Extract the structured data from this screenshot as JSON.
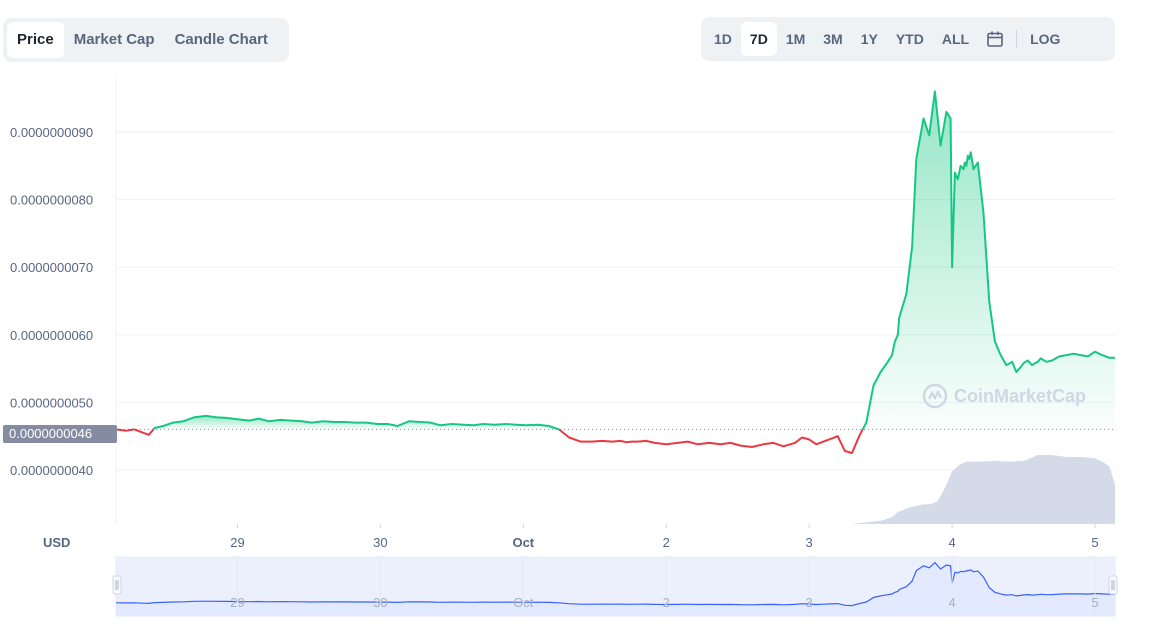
{
  "tabs": [
    {
      "label": "Price",
      "active": true
    },
    {
      "label": "Market Cap",
      "active": false
    },
    {
      "label": "Candle Chart",
      "active": false
    }
  ],
  "ranges": [
    {
      "label": "1D",
      "active": false
    },
    {
      "label": "7D",
      "active": true
    },
    {
      "label": "1M",
      "active": false
    },
    {
      "label": "3M",
      "active": false
    },
    {
      "label": "1Y",
      "active": false
    },
    {
      "label": "YTD",
      "active": false
    },
    {
      "label": "ALL",
      "active": false
    }
  ],
  "calendar_icon": "calendar-icon",
  "log_label": "LOG",
  "watermark": "CoinMarketCap",
  "current_price_label": "0.0000000046",
  "colors": {
    "up": "#16c784",
    "down": "#ea3943",
    "volume": "#cfd6e4",
    "navigator_line": "#3861fb",
    "navigator_fill": "#e3eaff"
  },
  "chart_data": {
    "type": "line",
    "currency_label": "USD",
    "x_ticks": [
      {
        "label": "29",
        "x": 1.0
      },
      {
        "label": "30",
        "x": 2.0
      },
      {
        "label": "Oct",
        "x": 3.0
      },
      {
        "label": "2",
        "x": 4.0
      },
      {
        "label": "3",
        "x": 5.0
      },
      {
        "label": "4",
        "x": 6.0
      },
      {
        "label": "5",
        "x": 7.0
      }
    ],
    "y_ticks": [
      "0.0000000040",
      "0.0000000050",
      "0.0000000060",
      "0.0000000070",
      "0.0000000080",
      "0.0000000090"
    ],
    "y_tick_values": [
      4.0,
      5.0,
      6.0,
      7.0,
      8.0,
      9.0
    ],
    "ylim": [
      3.2,
      9.8
    ],
    "y_unit": "e-9 USD",
    "xlim": [
      0.15,
      7.14
    ],
    "baseline": 4.6,
    "series": [
      {
        "x": [
          0.15,
          0.22,
          0.28,
          0.34,
          0.38,
          0.42,
          0.48,
          0.55,
          0.62,
          0.7,
          0.78,
          0.85,
          0.92,
          1.0,
          1.08,
          1.15,
          1.22,
          1.3,
          1.38,
          1.45,
          1.52,
          1.6,
          1.68,
          1.75,
          1.82,
          1.9,
          1.98,
          2.05,
          2.12,
          2.2,
          2.28,
          2.35,
          2.42,
          2.5,
          2.58,
          2.65,
          2.72,
          2.8,
          2.88,
          2.95,
          3.02,
          3.1,
          3.18,
          3.25,
          3.32,
          3.4,
          3.48,
          3.55,
          3.62,
          3.68,
          3.72,
          3.76,
          3.8,
          3.86,
          3.92,
          4.0,
          4.08,
          4.15,
          4.22,
          4.3,
          4.38,
          4.45,
          4.52,
          4.6,
          4.68,
          4.75,
          4.82,
          4.9,
          4.95,
          5.0,
          5.05,
          5.1,
          5.15,
          5.2,
          5.25,
          5.3,
          5.35,
          5.4,
          5.45,
          5.5,
          5.55,
          5.58,
          5.6,
          5.62,
          5.63,
          5.65,
          5.68,
          5.72,
          5.75,
          5.8,
          5.84,
          5.88,
          5.92,
          5.96,
          5.99,
          6.0,
          6.02,
          6.04,
          6.06,
          6.08,
          6.09,
          6.1,
          6.11,
          6.12,
          6.13,
          6.15,
          6.18,
          6.22,
          6.26,
          6.3,
          6.34,
          6.38,
          6.42,
          6.45,
          6.47,
          6.48,
          6.5,
          6.53,
          6.56,
          6.58,
          6.6,
          6.62,
          6.66,
          6.7,
          6.75,
          6.8,
          6.85,
          6.9,
          6.95,
          7.0,
          7.05,
          7.1,
          7.14
        ],
        "values": [
          4.6,
          4.58,
          4.6,
          4.55,
          4.52,
          4.62,
          4.65,
          4.7,
          4.72,
          4.78,
          4.8,
          4.78,
          4.77,
          4.75,
          4.73,
          4.76,
          4.72,
          4.74,
          4.73,
          4.72,
          4.7,
          4.72,
          4.71,
          4.71,
          4.7,
          4.7,
          4.68,
          4.68,
          4.65,
          4.72,
          4.71,
          4.7,
          4.66,
          4.68,
          4.67,
          4.66,
          4.68,
          4.67,
          4.68,
          4.67,
          4.66,
          4.67,
          4.65,
          4.6,
          4.48,
          4.42,
          4.42,
          4.43,
          4.42,
          4.43,
          4.41,
          4.42,
          4.42,
          4.43,
          4.4,
          4.38,
          4.4,
          4.42,
          4.38,
          4.4,
          4.38,
          4.4,
          4.36,
          4.34,
          4.38,
          4.4,
          4.35,
          4.4,
          4.48,
          4.45,
          4.38,
          4.42,
          4.46,
          4.5,
          4.28,
          4.25,
          4.5,
          4.7,
          5.25,
          5.45,
          5.6,
          5.7,
          5.9,
          6.0,
          6.25,
          6.4,
          6.6,
          7.3,
          8.6,
          9.2,
          8.95,
          9.6,
          8.8,
          9.3,
          9.2,
          7.0,
          8.4,
          8.3,
          8.5,
          8.45,
          8.55,
          8.5,
          8.65,
          8.6,
          8.7,
          8.45,
          8.55,
          7.8,
          6.5,
          5.9,
          5.7,
          5.55,
          5.6,
          5.45,
          5.5,
          5.52,
          5.58,
          5.62,
          5.55,
          5.58,
          5.6,
          5.65,
          5.6,
          5.62,
          5.68,
          5.7,
          5.72,
          5.7,
          5.68,
          5.75,
          5.7,
          5.66,
          5.66
        ]
      },
      {
        "name": "Volume",
        "x": [
          0.15,
          3.0,
          5.3,
          5.5,
          5.58,
          5.62,
          5.7,
          5.8,
          5.85,
          5.9,
          5.95,
          6.0,
          6.05,
          6.1,
          6.2,
          6.3,
          6.4,
          6.5,
          6.55,
          6.6,
          6.7,
          6.8,
          6.9,
          7.0,
          7.05,
          7.1,
          7.14
        ],
        "values": [
          0.0,
          0.0,
          0.0,
          0.05,
          0.1,
          0.18,
          0.25,
          0.3,
          0.3,
          0.35,
          0.55,
          0.8,
          0.9,
          0.95,
          0.95,
          0.96,
          0.95,
          0.96,
          1.0,
          1.05,
          1.05,
          1.02,
          1.02,
          1.0,
          0.95,
          0.88,
          0.6
        ]
      }
    ],
    "navigator": {
      "x_ticks": [
        "29",
        "30",
        "Oct",
        "2",
        "3",
        "4",
        "5"
      ]
    }
  }
}
